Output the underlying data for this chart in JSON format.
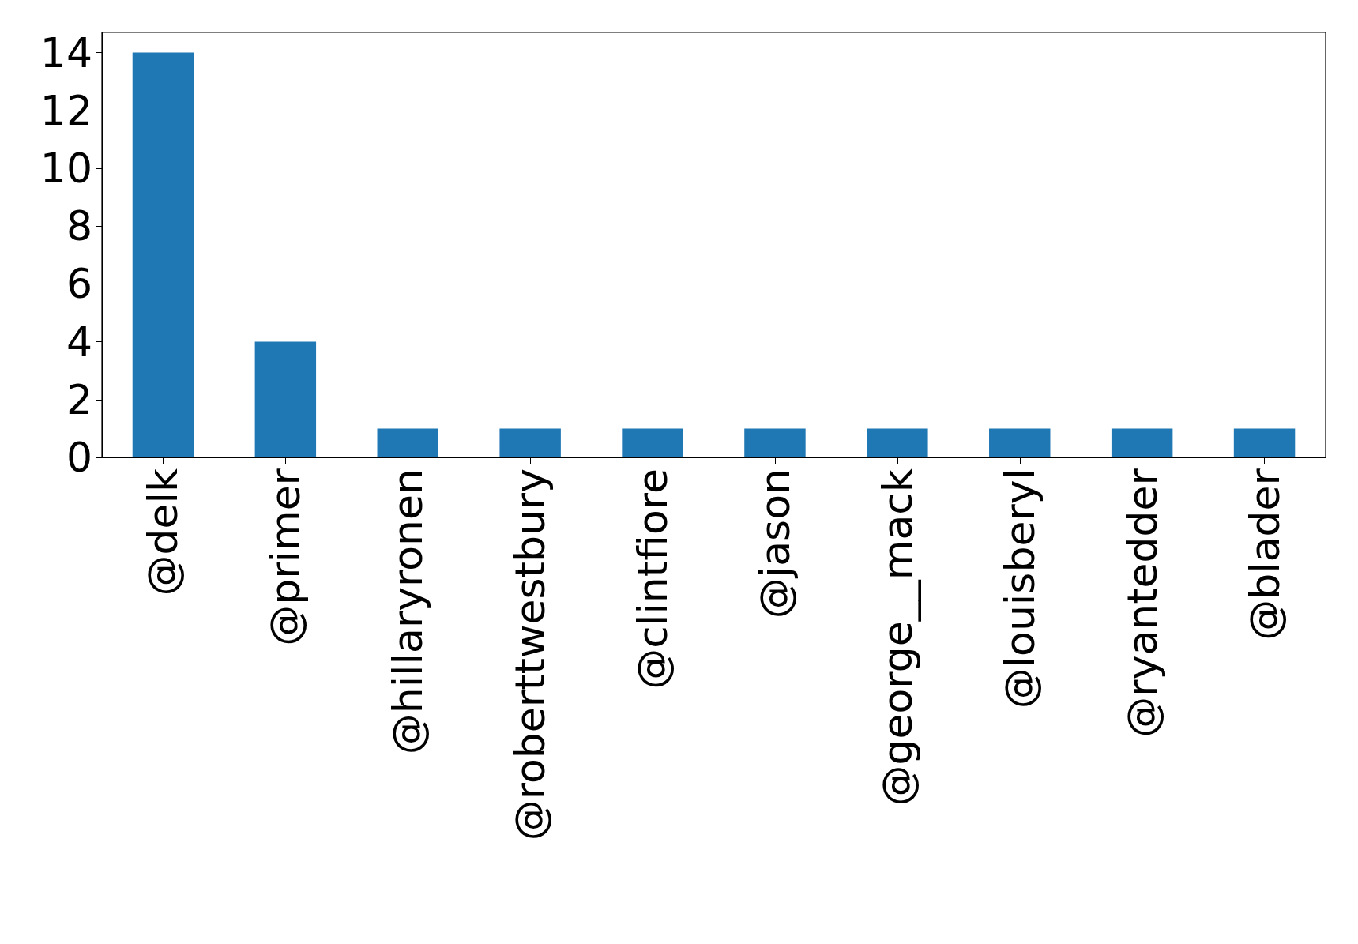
{
  "chart_data": {
    "type": "bar",
    "categories": [
      "@delk",
      "@primer",
      "@hillaryronen",
      "@roberttwestbury",
      "@clintfiore",
      "@jason",
      "@george__mack",
      "@louisberyl",
      "@ryantedder",
      "@blader"
    ],
    "values": [
      14,
      4,
      1,
      1,
      1,
      1,
      1,
      1,
      1,
      1
    ],
    "color": "#1f77b4",
    "ylim": [
      0,
      14.7
    ],
    "yticks": [
      0,
      2,
      4,
      6,
      8,
      10,
      12,
      14
    ]
  }
}
